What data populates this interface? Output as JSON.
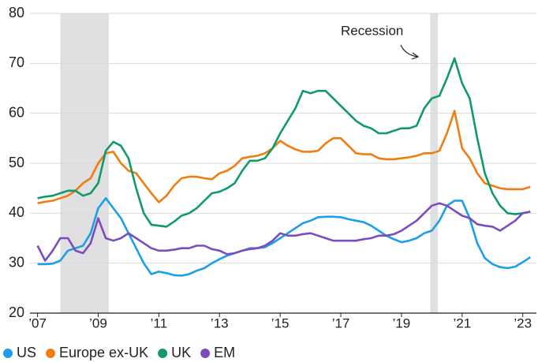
{
  "chart_data": {
    "type": "line",
    "annotation": "Recession",
    "recession_periods": [
      [
        2007.75,
        2009.35
      ],
      [
        2019.95,
        2020.2
      ]
    ],
    "x": [
      2007,
      2007.25,
      2007.5,
      2007.75,
      2008,
      2008.25,
      2008.5,
      2008.75,
      2009,
      2009.25,
      2009.5,
      2009.75,
      2010,
      2010.25,
      2010.5,
      2010.75,
      2011,
      2011.25,
      2011.5,
      2011.75,
      2012,
      2012.25,
      2012.5,
      2012.75,
      2013,
      2013.25,
      2013.5,
      2013.75,
      2014,
      2014.25,
      2014.5,
      2014.75,
      2015,
      2015.25,
      2015.5,
      2015.75,
      2016,
      2016.25,
      2016.5,
      2016.75,
      2017,
      2017.25,
      2017.5,
      2017.75,
      2018,
      2018.25,
      2018.5,
      2018.75,
      2019,
      2019.25,
      2019.5,
      2019.75,
      2020,
      2020.25,
      2020.5,
      2020.75,
      2021,
      2021.25,
      2021.5,
      2021.75,
      2022,
      2022.25,
      2022.5,
      2022.75,
      2023,
      2023.25
    ],
    "series": [
      {
        "name": "US",
        "color": "#1a9fe8",
        "values": [
          29.8,
          29.8,
          29.9,
          30.5,
          32.5,
          33,
          33.5,
          36,
          41,
          43,
          41,
          39,
          36,
          33,
          30,
          27.8,
          28.3,
          28,
          27.6,
          27.5,
          27.8,
          28.5,
          29,
          30,
          30.8,
          31.5,
          32,
          32.5,
          33,
          33,
          33.2,
          34,
          35,
          36,
          37,
          38,
          38.5,
          39.2,
          39.3,
          39.3,
          39.2,
          38.8,
          38.5,
          38.2,
          37.5,
          36.5,
          35.5,
          34.8,
          34.2,
          34.5,
          35,
          36,
          36.5,
          38.5,
          41.5,
          42.5,
          42.5,
          39,
          34,
          31,
          29.8,
          29.2,
          29,
          29.3,
          30.2,
          31.2
        ]
      },
      {
        "name": "Europe ex-UK",
        "color": "#f07d10",
        "values": [
          42,
          42.3,
          42.5,
          43,
          43.5,
          44.5,
          46,
          47,
          50,
          52,
          52.3,
          50,
          48.5,
          48,
          46,
          44,
          42.2,
          43.5,
          45.5,
          47,
          47.3,
          47.3,
          47,
          46.8,
          48,
          48.5,
          49.5,
          51,
          51.3,
          51.5,
          52,
          53,
          54.5,
          53.5,
          52.8,
          52.3,
          52.3,
          52.5,
          54,
          55,
          55,
          53.5,
          52,
          51.8,
          51.8,
          51,
          50.8,
          50.8,
          51,
          51.2,
          51.5,
          52,
          52,
          52.5,
          56,
          60.5,
          53,
          51,
          48,
          46,
          45.5,
          45,
          44.8,
          44.8,
          44.8,
          45.3
        ]
      },
      {
        "name": "UK",
        "color": "#0f9a68",
        "values": [
          43,
          43.3,
          43.5,
          44,
          44.5,
          44.5,
          43.5,
          44,
          46,
          52.5,
          54.3,
          53.5,
          51,
          45,
          40,
          37.7,
          37.5,
          37.3,
          38.3,
          39.5,
          40,
          41,
          42.5,
          44,
          44.3,
          45,
          46,
          48.5,
          50.5,
          50.5,
          51,
          53,
          56,
          58.5,
          61,
          64.5,
          64,
          64.5,
          64.5,
          63,
          61.5,
          60,
          58.5,
          57.5,
          57,
          56,
          56,
          56.5,
          57,
          57,
          57.5,
          61,
          63,
          63.5,
          67,
          71,
          66,
          63,
          55,
          48,
          44,
          41.5,
          40,
          39.8,
          40,
          40.3
        ]
      },
      {
        "name": "EM",
        "color": "#7b4bbf",
        "values": [
          33.5,
          30.5,
          32.5,
          35,
          35,
          32.5,
          32,
          34,
          39,
          35,
          34.5,
          35,
          36,
          35,
          34,
          33,
          32.5,
          32.5,
          32.7,
          33,
          33,
          33.5,
          33.5,
          32.8,
          32.5,
          31.8,
          32,
          32.5,
          32.8,
          33,
          33.5,
          34.5,
          36,
          35.5,
          35.5,
          35.8,
          36,
          35.5,
          35,
          34.5,
          34.5,
          34.5,
          34.5,
          34.8,
          35,
          35.5,
          35.5,
          35.8,
          36.5,
          37.5,
          38.5,
          40,
          41.5,
          42,
          41.5,
          40.5,
          39.5,
          39,
          37.8,
          37.5,
          37.3,
          36.5,
          37.5,
          38.5,
          40,
          40.3
        ]
      }
    ],
    "xlim": [
      2006.75,
      2023.45
    ],
    "xticks": [
      {
        "value": 2007,
        "label": "’07"
      },
      {
        "value": 2009,
        "label": "’09"
      },
      {
        "value": 2011,
        "label": "’11"
      },
      {
        "value": 2013,
        "label": "’13"
      },
      {
        "value": 2015,
        "label": "’15"
      },
      {
        "value": 2017,
        "label": "’17"
      },
      {
        "value": 2019,
        "label": "’19"
      },
      {
        "value": 2021,
        "label": "’21"
      },
      {
        "value": 2023,
        "label": "’23"
      }
    ],
    "ylim": [
      20,
      80
    ],
    "yticks": [
      20,
      30,
      40,
      50,
      60,
      70,
      80
    ],
    "grid": true,
    "legend": "bottom"
  }
}
